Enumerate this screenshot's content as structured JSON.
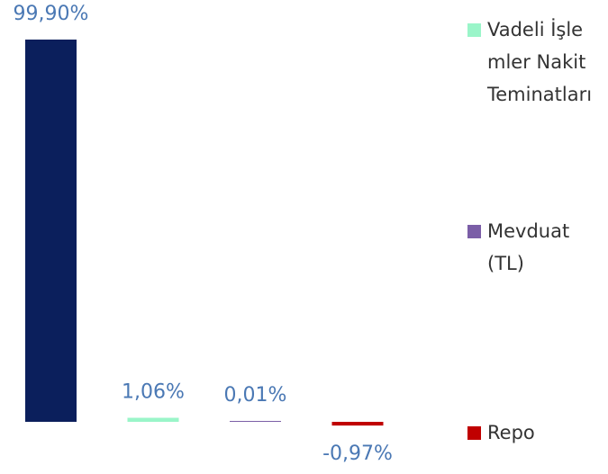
{
  "chart_data": {
    "type": "bar",
    "categories": [
      null,
      null,
      null,
      null
    ],
    "values": [
      99.9,
      1.06,
      0.01,
      -0.97
    ],
    "value_labels": [
      "99,90%",
      "1,06%",
      "0,01%",
      "-0,97%"
    ],
    "colors": [
      "#0b1f5c",
      "#9af5c9",
      "#7b5ea7",
      "#c00000"
    ],
    "legend": [
      {
        "name": "Vadeli İşlemler Nakit Teminatları",
        "color": "#9af5c9"
      },
      {
        "name": "Mevduat (TL)",
        "color": "#7b5ea7"
      },
      {
        "name": "Repo",
        "color": "#c00000"
      }
    ]
  }
}
